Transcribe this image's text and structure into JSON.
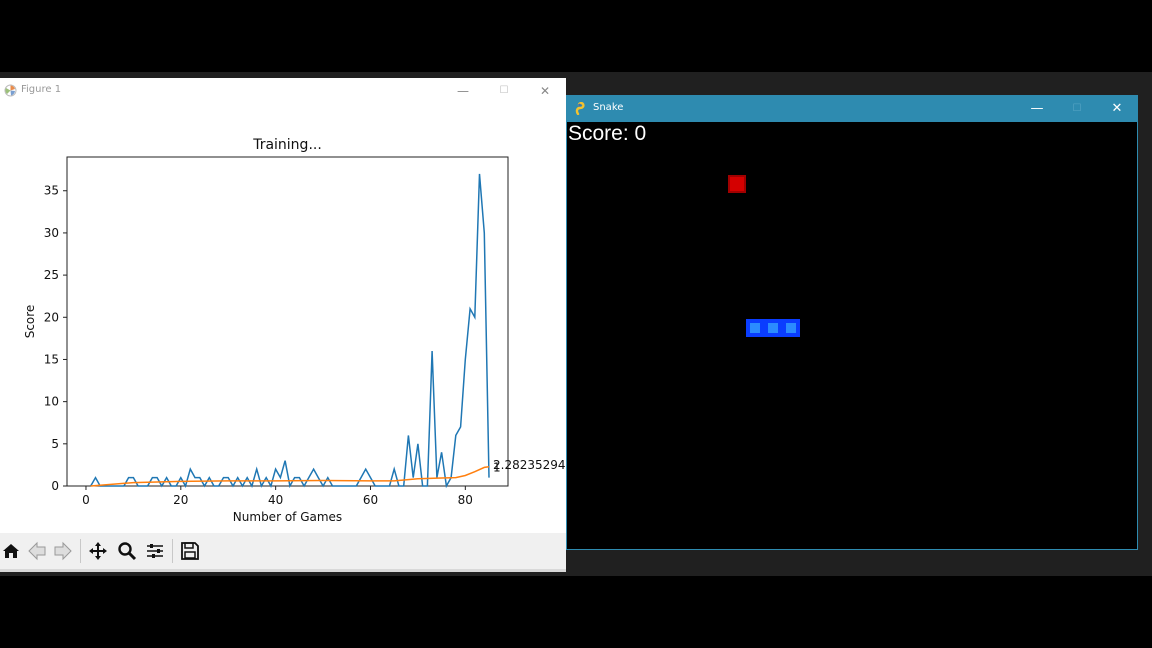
{
  "figure_window": {
    "title": "Figure 1",
    "controls": {
      "minimize": "—",
      "maximize": "☐",
      "close": "✕"
    },
    "toolbar": [
      "home-icon",
      "back-icon",
      "forward-icon",
      "pan-icon",
      "zoom-icon",
      "configure-subplots-icon",
      "save-icon"
    ]
  },
  "chart_data": {
    "type": "line",
    "title": "Training...",
    "xlabel": "Number of Games",
    "ylabel": "Score",
    "xlim": [
      -4,
      89
    ],
    "ylim": [
      0,
      39
    ],
    "xticks": [
      0,
      20,
      40,
      60,
      80
    ],
    "yticks": [
      0,
      5,
      10,
      15,
      20,
      25,
      30,
      35
    ],
    "grid": false,
    "colors": {
      "scores": "#1f77b4",
      "mean_scores": "#ff7f0e"
    },
    "series": [
      {
        "name": "",
        "x": [
          1,
          2,
          3,
          4,
          5,
          6,
          7,
          8,
          9,
          10,
          11,
          12,
          13,
          14,
          15,
          16,
          17,
          18,
          19,
          20,
          21,
          22,
          23,
          24,
          25,
          26,
          27,
          28,
          29,
          30,
          31,
          32,
          33,
          34,
          35,
          36,
          37,
          38,
          39,
          40,
          41,
          42,
          43,
          44,
          45,
          46,
          47,
          48,
          49,
          50,
          51,
          52,
          53,
          54,
          55,
          56,
          57,
          58,
          59,
          60,
          61,
          62,
          63,
          64,
          65,
          66,
          67,
          68,
          69,
          70,
          71,
          72,
          73,
          74,
          75,
          76,
          77,
          78,
          79,
          80,
          81,
          82,
          83,
          84,
          85
        ],
        "y": [
          0,
          1,
          0,
          0,
          0,
          0,
          0,
          0,
          1,
          1,
          0,
          0,
          0,
          1,
          1,
          0,
          1,
          0,
          0,
          1,
          0,
          2,
          1,
          1,
          0,
          1,
          0,
          0,
          1,
          1,
          0,
          1,
          0,
          1,
          0,
          2,
          0,
          1,
          0,
          2,
          1,
          3,
          0,
          1,
          1,
          0,
          1,
          2,
          1,
          0,
          1,
          0,
          0,
          0,
          0,
          0,
          0,
          1,
          2,
          1,
          0,
          0,
          0,
          0,
          2,
          0,
          0,
          6,
          1,
          5,
          0,
          0,
          16,
          1,
          4,
          0,
          1,
          6,
          7,
          15,
          21,
          20,
          37,
          30,
          1
        ],
        "label_end": "1"
      },
      {
        "name": "",
        "x": [
          1,
          10,
          20,
          30,
          40,
          50,
          60,
          65,
          70,
          75,
          78,
          80,
          82,
          84,
          85
        ],
        "y": [
          0,
          0.4,
          0.55,
          0.6,
          0.6,
          0.65,
          0.6,
          0.6,
          0.85,
          0.95,
          1.0,
          1.25,
          1.7,
          2.2,
          2.28
        ],
        "label_end": "2.2823529411764705"
      }
    ]
  },
  "snake_window": {
    "title": "Snake",
    "controls": {
      "minimize": "—",
      "maximize": "☐",
      "close": "✕"
    },
    "score_label": "Score: 0",
    "food_color": "#d40000",
    "snake_color": "#0a3dff",
    "snake_length": 3
  }
}
